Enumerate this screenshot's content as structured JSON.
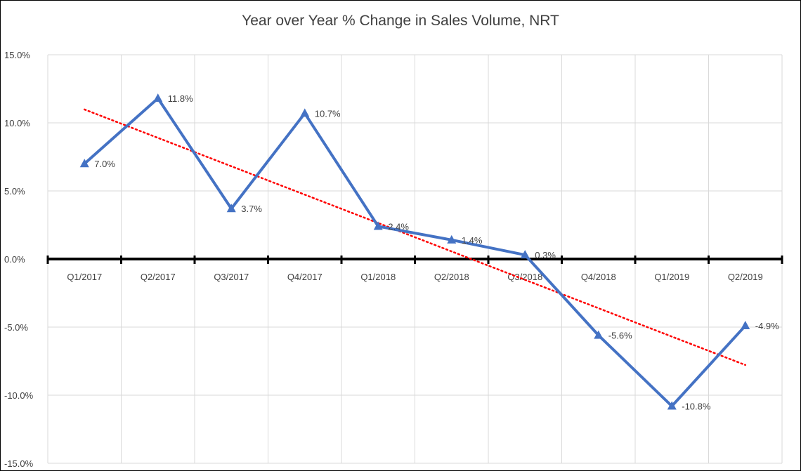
{
  "chart_data": {
    "type": "line",
    "title": "Year over Year % Change in Sales Volume, NRT",
    "xlabel": "",
    "ylabel": "",
    "categories": [
      "Q1/2017",
      "Q2/2017",
      "Q3/2017",
      "Q4/2017",
      "Q1/2018",
      "Q2/2018",
      "Q3/2018",
      "Q4/2018",
      "Q1/2019",
      "Q2/2019"
    ],
    "series": [
      {
        "values": [
          7.0,
          11.8,
          3.7,
          10.7,
          2.4,
          1.4,
          0.3,
          -5.6,
          -10.8,
          -4.9
        ],
        "data_labels": [
          "7.0%",
          "11.8%",
          "3.7%",
          "10.7%",
          "2.4%",
          "1.4%",
          "0.3%",
          "-5.6%",
          "-10.8%",
          "-4.9%"
        ],
        "color": "#4472C4",
        "marker": "triangle"
      }
    ],
    "trendline": {
      "type": "linear",
      "color": "#FF0000",
      "style": "dotted"
    },
    "ylim": [
      -15,
      15
    ],
    "yticks": [
      15,
      10,
      5,
      0,
      -5,
      -10,
      -15
    ],
    "ytick_labels": [
      "15.0%",
      "10.0%",
      "5.0%",
      "0.0%",
      "-5.0%",
      "-10.0%",
      "-15.0%"
    ],
    "grid": true,
    "legend": "none"
  }
}
